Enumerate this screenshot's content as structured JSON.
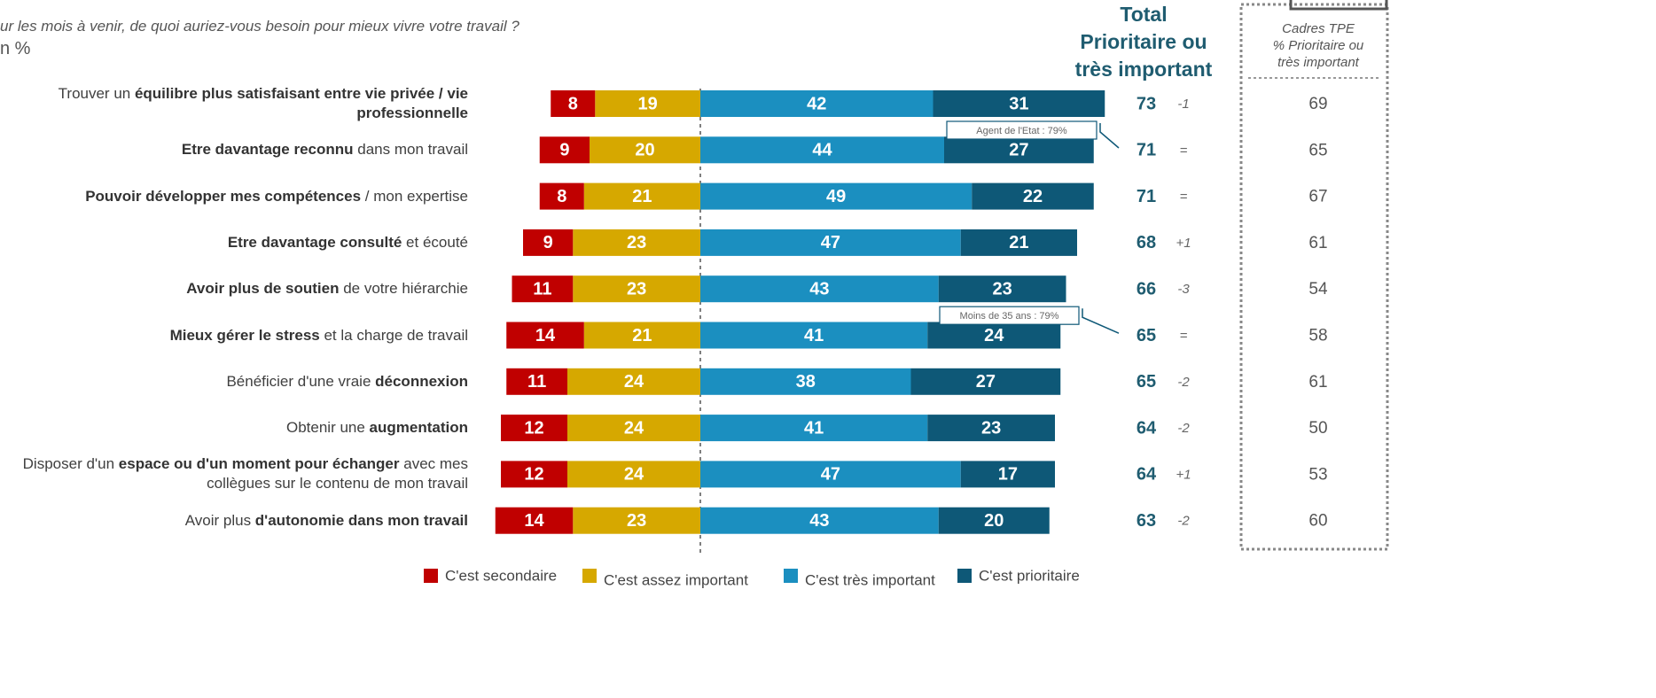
{
  "chart_data": {
    "type": "diverging-bar",
    "title": "ur les mois à venir, de quoi auriez-vous besoin pour mieux vivre votre travail ?",
    "subtitle": "n %",
    "categories": [
      [
        {
          "text": "Trouver un ",
          "bold": false
        },
        {
          "text": "équilibre plus satisfaisant entre vie privée / vie professionnelle",
          "bold": true
        }
      ],
      [
        {
          "text": "Etre davantage reconnu",
          "bold": true
        },
        {
          "text": " dans mon travail",
          "bold": false
        }
      ],
      [
        {
          "text": "Pouvoir développer mes compétences",
          "bold": true
        },
        {
          "text": " / mon expertise",
          "bold": false
        }
      ],
      [
        {
          "text": "Etre davantage consulté",
          "bold": true
        },
        {
          "text": " et écouté",
          "bold": false
        }
      ],
      [
        {
          "text": "Avoir plus de soutien",
          "bold": true
        },
        {
          "text": " de votre hiérarchie",
          "bold": false
        }
      ],
      [
        {
          "text": "Mieux gérer le stress",
          "bold": true
        },
        {
          "text": " et la charge de travail",
          "bold": false
        }
      ],
      [
        {
          "text": "Bénéficier d'une vraie ",
          "bold": false
        },
        {
          "text": "déconnexion",
          "bold": true
        }
      ],
      [
        {
          "text": "Obtenir une ",
          "bold": false
        },
        {
          "text": "augmentation",
          "bold": true
        }
      ],
      [
        {
          "text": "Disposer d'un ",
          "bold": false
        },
        {
          "text": "espace ou d'un moment pour échanger",
          "bold": true
        },
        {
          "text": " avec mes collègues sur le contenu de mon travail",
          "bold": false
        }
      ],
      [
        {
          "text": "Avoir plus ",
          "bold": false
        },
        {
          "text": "d'autonomie dans mon travail",
          "bold": true
        }
      ]
    ],
    "series": [
      {
        "name": "C'est secondaire",
        "color": "#c00000",
        "side": "left",
        "values": [
          8,
          9,
          8,
          9,
          11,
          14,
          11,
          12,
          12,
          14
        ]
      },
      {
        "name": "C'est assez important",
        "color": "#d6a800",
        "side": "left",
        "values": [
          19,
          20,
          21,
          23,
          23,
          21,
          24,
          24,
          24,
          23
        ]
      },
      {
        "name": "C'est très important",
        "color": "#1b8fc0",
        "side": "right",
        "values": [
          42,
          44,
          49,
          47,
          43,
          41,
          38,
          41,
          47,
          43
        ]
      },
      {
        "name": "C'est prioritaire",
        "color": "#0e5877",
        "side": "right",
        "values": [
          31,
          27,
          22,
          21,
          23,
          24,
          27,
          23,
          17,
          20
        ]
      }
    ],
    "total_header": [
      "Total",
      "Prioritaire ou",
      "très important"
    ],
    "totals": [
      73,
      71,
      71,
      68,
      66,
      65,
      65,
      64,
      64,
      63
    ],
    "evolution": [
      "-1",
      "=",
      "=",
      "+1",
      "-3",
      "=",
      "-2",
      "-2",
      "+1",
      "-2"
    ],
    "cadres_header": [
      "Cadres TPE",
      "% Prioritaire ou",
      "très important"
    ],
    "cadres_tpe": [
      69,
      65,
      67,
      61,
      54,
      58,
      61,
      50,
      53,
      60
    ],
    "annotations": [
      {
        "text": "Agent de l'Etat : 79%",
        "row": 0
      },
      {
        "text": "Moins de 35 ans : 79%",
        "row": 4
      }
    ]
  }
}
